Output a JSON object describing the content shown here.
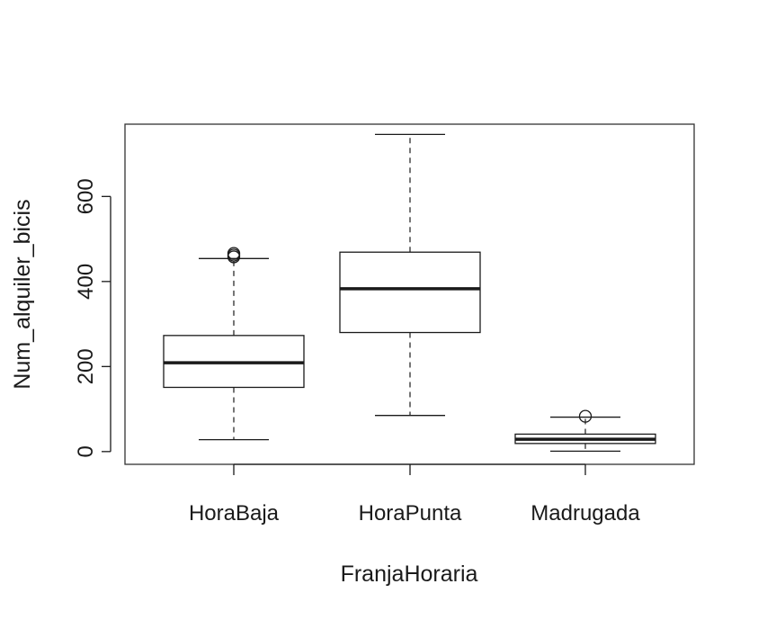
{
  "chart_data": {
    "type": "boxplot",
    "title": "",
    "xlabel": "FranjaHoraria",
    "ylabel": "Num_alquiler_bicis",
    "ylim": [
      -30,
      770
    ],
    "yticks": [
      0,
      200,
      400,
      600
    ],
    "categories": [
      "HoraBaja",
      "HoraPunta",
      "Madrugada"
    ],
    "boxes": [
      {
        "category": "HoraBaja",
        "whisker_low": 28,
        "q1": 151,
        "median": 209,
        "q3": 273,
        "whisker_high": 454,
        "outliers": [
          458,
          462,
          466
        ]
      },
      {
        "category": "HoraPunta",
        "whisker_low": 85,
        "q1": 280,
        "median": 383,
        "q3": 469,
        "whisker_high": 746,
        "outliers": []
      },
      {
        "category": "Madrugada",
        "whisker_low": 1,
        "q1": 19,
        "median": 29,
        "q3": 41,
        "whisker_high": 81,
        "outliers": [
          83
        ]
      }
    ],
    "grid": false,
    "legend": "none"
  },
  "colors": {
    "ink": "#1a1a1a",
    "frame": "#333333",
    "background": "#ffffff"
  }
}
